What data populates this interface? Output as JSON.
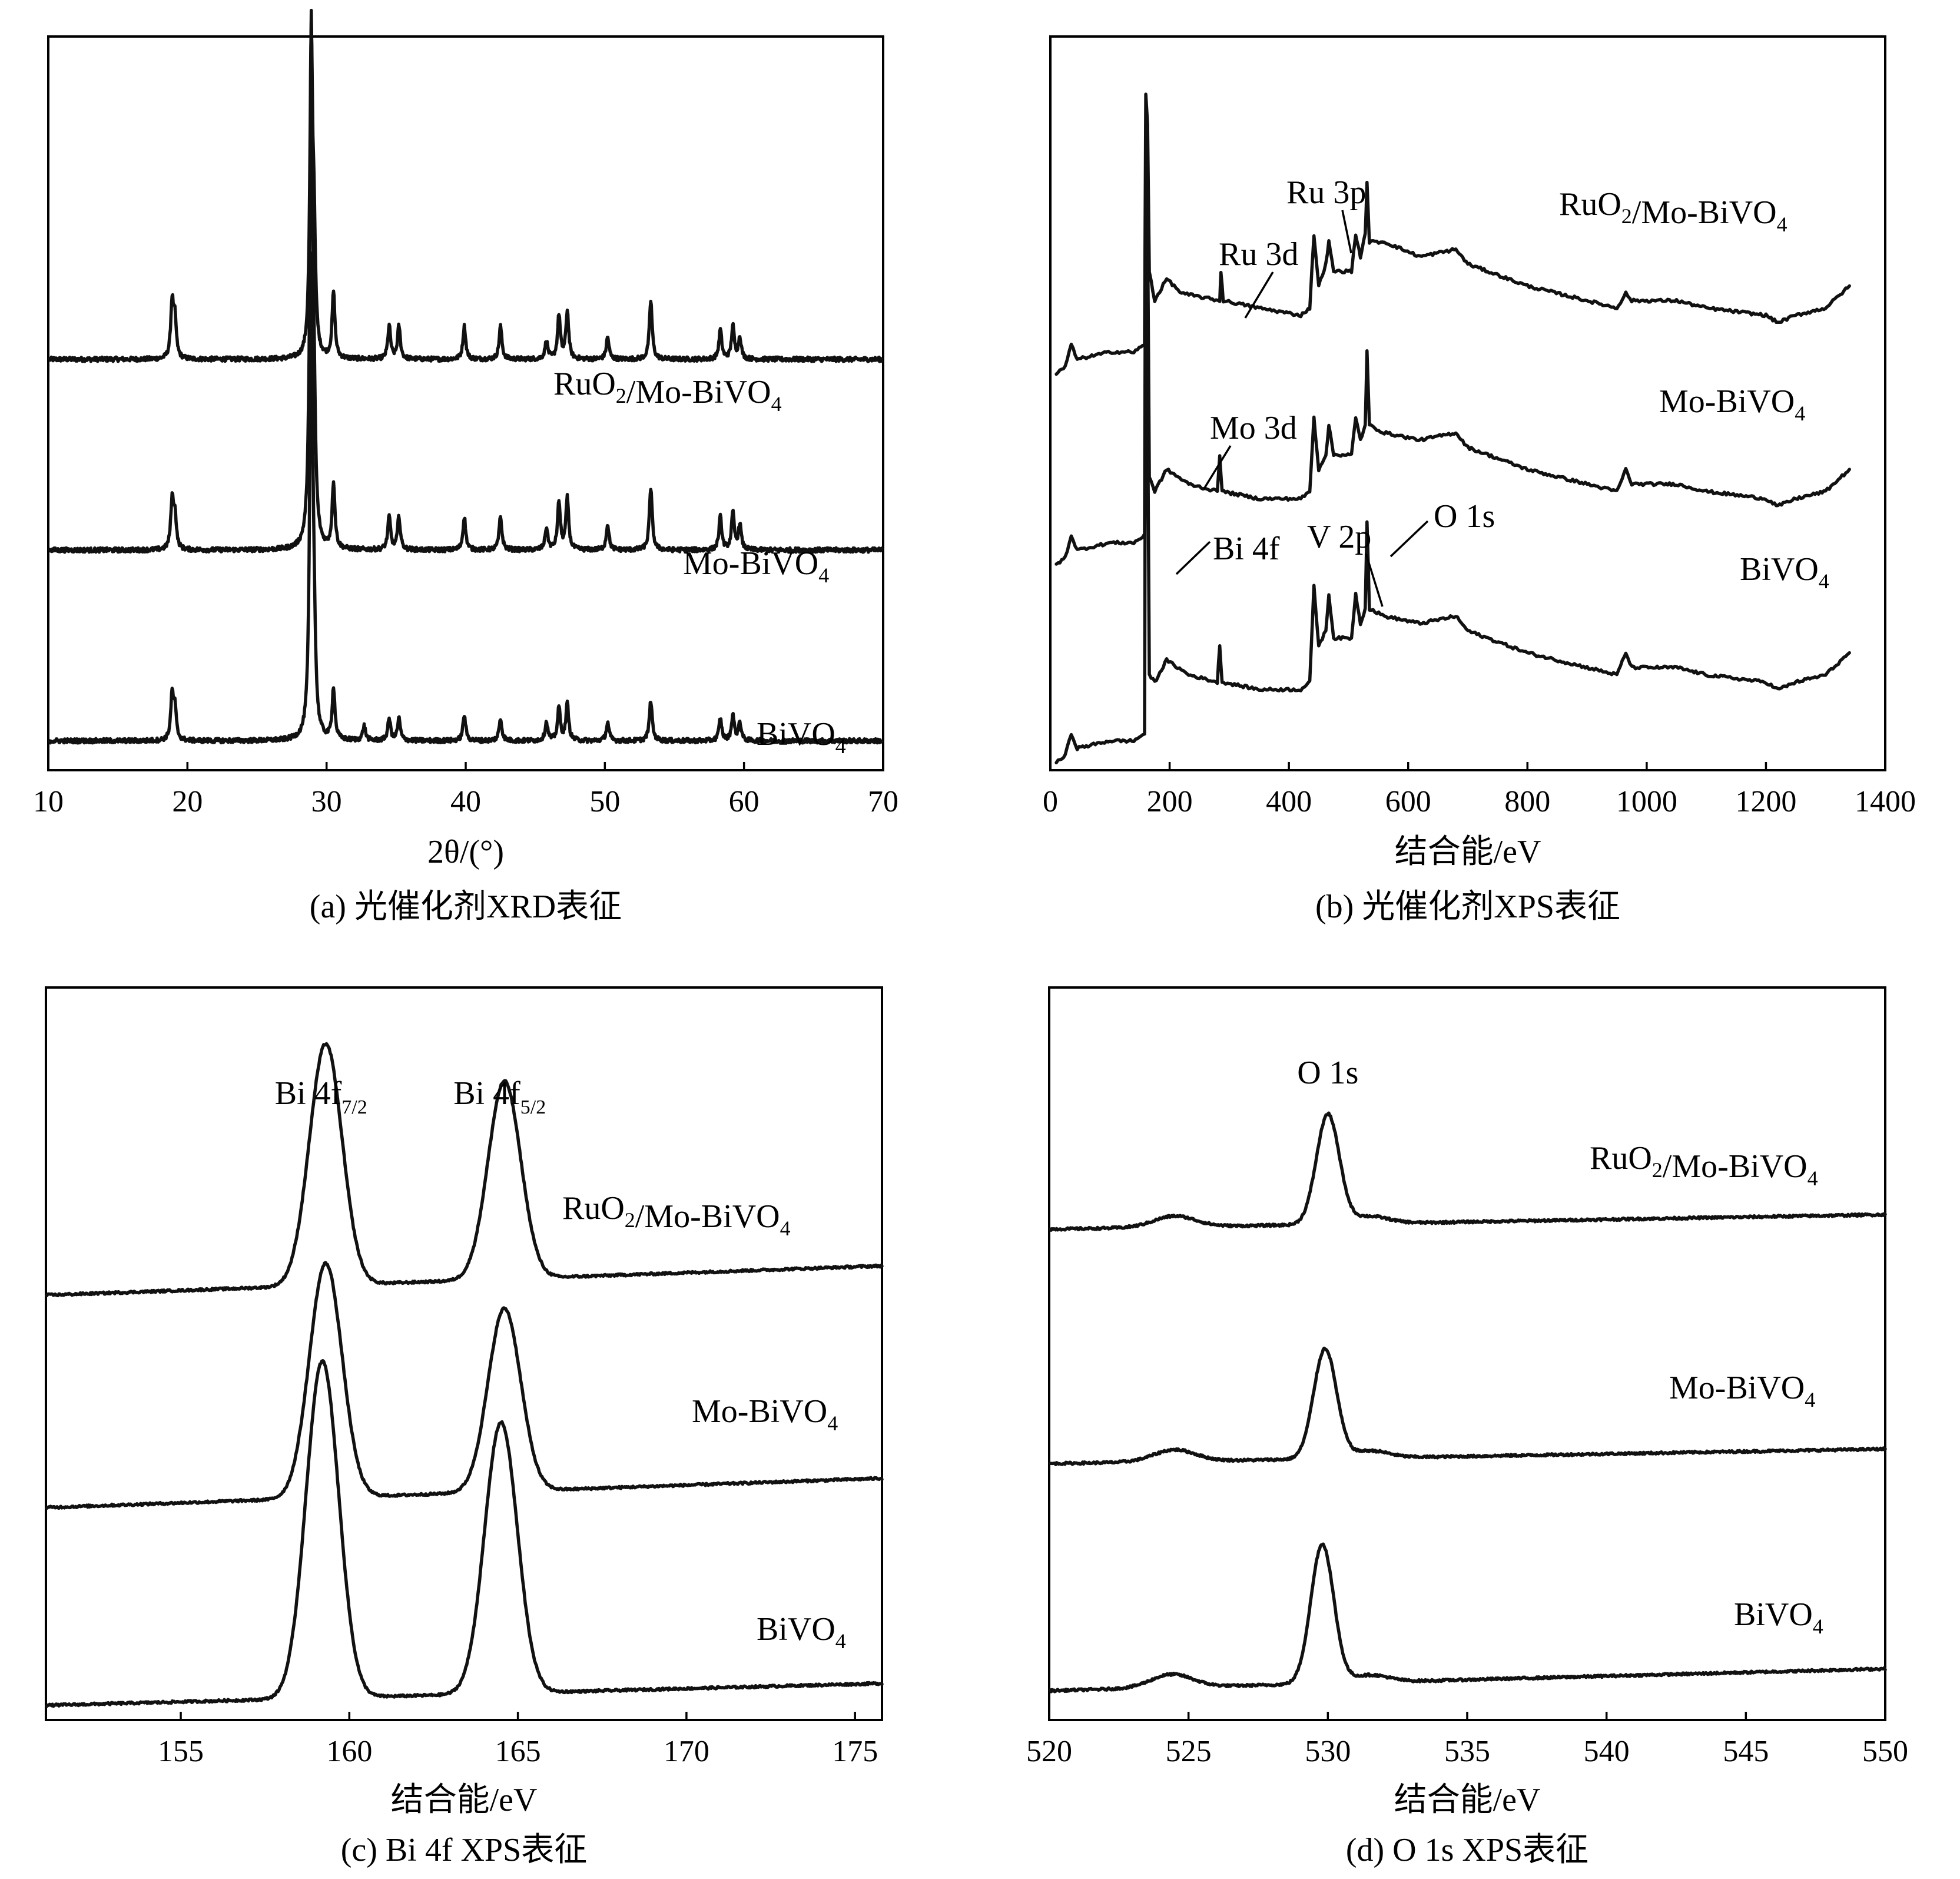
{
  "chart_data": [
    {
      "id": "a",
      "type": "line",
      "caption": "(a) 光催化剂XRD表征",
      "xlabel": "2θ/(°)",
      "ylabel": "",
      "xlim": [
        10,
        70
      ],
      "xticks": [
        10,
        20,
        30,
        40,
        50,
        60,
        70
      ],
      "y_axis_ticks": false,
      "grid": false,
      "baseline_step": 0.26,
      "series": [
        {
          "name": "RuO₂/Mo-BiVO₄",
          "baseline": 0.56,
          "peaks": [
            [
              18.9,
              0.075
            ],
            [
              19.1,
              0.05
            ],
            [
              28.9,
              0.42
            ],
            [
              29.1,
              0.14
            ],
            [
              30.5,
              0.09
            ],
            [
              34.5,
              0.045
            ],
            [
              35.2,
              0.045
            ],
            [
              39.9,
              0.045
            ],
            [
              42.5,
              0.045
            ],
            [
              45.8,
              0.025
            ],
            [
              46.7,
              0.06
            ],
            [
              47.3,
              0.065
            ],
            [
              50.2,
              0.03
            ],
            [
              53.3,
              0.08
            ],
            [
              58.3,
              0.04
            ],
            [
              59.2,
              0.045
            ],
            [
              59.7,
              0.03
            ]
          ]
        },
        {
          "name": "Mo-BiVO₄",
          "baseline": 0.3,
          "peaks": [
            [
              18.9,
              0.065
            ],
            [
              19.1,
              0.045
            ],
            [
              28.9,
              0.7
            ],
            [
              29.1,
              0.13
            ],
            [
              30.5,
              0.09
            ],
            [
              34.5,
              0.045
            ],
            [
              35.2,
              0.045
            ],
            [
              39.9,
              0.045
            ],
            [
              42.5,
              0.045
            ],
            [
              45.8,
              0.03
            ],
            [
              46.7,
              0.065
            ],
            [
              47.3,
              0.07
            ],
            [
              50.2,
              0.035
            ],
            [
              53.3,
              0.085
            ],
            [
              58.3,
              0.045
            ],
            [
              59.2,
              0.05
            ],
            [
              59.7,
              0.035
            ]
          ]
        },
        {
          "name": "BiVO₄",
          "baseline": 0.04,
          "peaks": [
            [
              18.9,
              0.06
            ],
            [
              19.1,
              0.04
            ],
            [
              28.9,
              0.64
            ],
            [
              29.1,
              0.1
            ],
            [
              30.5,
              0.07
            ],
            [
              32.7,
              0.02
            ],
            [
              34.5,
              0.03
            ],
            [
              35.2,
              0.03
            ],
            [
              39.9,
              0.035
            ],
            [
              42.5,
              0.03
            ],
            [
              45.8,
              0.025
            ],
            [
              46.7,
              0.045
            ],
            [
              47.3,
              0.05
            ],
            [
              50.2,
              0.025
            ],
            [
              53.3,
              0.055
            ],
            [
              58.3,
              0.03
            ],
            [
              59.2,
              0.035
            ],
            [
              59.7,
              0.025
            ]
          ]
        }
      ]
    },
    {
      "id": "b",
      "type": "line",
      "caption": "(b) 光催化剂XPS表征",
      "xlabel": "结合能/eV",
      "ylabel": "",
      "xlim": [
        0,
        1400
      ],
      "xticks": [
        0,
        200,
        400,
        600,
        800,
        1000,
        1200,
        1400
      ],
      "y_axis_ticks": false,
      "grid": false,
      "series": [
        {
          "name": "RuO₂/Mo-BiVO₄",
          "points": [
            [
              10,
              0.54
            ],
            [
              25,
              0.55
            ],
            [
              35,
              0.58
            ],
            [
              45,
              0.56
            ],
            [
              100,
              0.57
            ],
            [
              140,
              0.57
            ],
            [
              158,
              0.58
            ],
            [
              160,
              0.92
            ],
            [
              163,
              0.88
            ],
            [
              166,
              0.68
            ],
            [
              175,
              0.64
            ],
            [
              195,
              0.67
            ],
            [
              220,
              0.65
            ],
            [
              284,
              0.64
            ],
            [
              286,
              0.68
            ],
            [
              290,
              0.64
            ],
            [
              350,
              0.63
            ],
            [
              420,
              0.62
            ],
            [
              435,
              0.63
            ],
            [
              442,
              0.73
            ],
            [
              450,
              0.66
            ],
            [
              462,
              0.69
            ],
            [
              467,
              0.72
            ],
            [
              475,
              0.68
            ],
            [
              505,
              0.68
            ],
            [
              512,
              0.73
            ],
            [
              520,
              0.7
            ],
            [
              528,
              0.73
            ],
            [
              531,
              0.8
            ],
            [
              535,
              0.72
            ],
            [
              560,
              0.72
            ],
            [
              620,
              0.7
            ],
            [
              680,
              0.71
            ],
            [
              700,
              0.69
            ],
            [
              800,
              0.66
            ],
            [
              900,
              0.64
            ],
            [
              950,
              0.63
            ],
            [
              965,
              0.65
            ],
            [
              975,
              0.64
            ],
            [
              1000,
              0.64
            ],
            [
              1050,
              0.64
            ],
            [
              1100,
              0.63
            ],
            [
              1200,
              0.62
            ],
            [
              1220,
              0.61
            ],
            [
              1250,
              0.62
            ],
            [
              1300,
              0.63
            ],
            [
              1340,
              0.66
            ]
          ]
        },
        {
          "name": "Mo-BiVO₄",
          "points": [
            [
              10,
              0.28
            ],
            [
              25,
              0.29
            ],
            [
              35,
              0.32
            ],
            [
              45,
              0.3
            ],
            [
              100,
              0.31
            ],
            [
              140,
              0.31
            ],
            [
              158,
              0.32
            ],
            [
              160,
              0.86
            ],
            [
              163,
              0.76
            ],
            [
              166,
              0.4
            ],
            [
              175,
              0.38
            ],
            [
              195,
              0.41
            ],
            [
              232,
              0.39
            ],
            [
              280,
              0.38
            ],
            [
              284,
              0.43
            ],
            [
              288,
              0.38
            ],
            [
              350,
              0.37
            ],
            [
              420,
              0.37
            ],
            [
              435,
              0.38
            ],
            [
              442,
              0.48
            ],
            [
              450,
              0.41
            ],
            [
              462,
              0.43
            ],
            [
              467,
              0.47
            ],
            [
              475,
              0.43
            ],
            [
              505,
              0.43
            ],
            [
              512,
              0.48
            ],
            [
              520,
              0.45
            ],
            [
              528,
              0.47
            ],
            [
              531,
              0.57
            ],
            [
              535,
              0.47
            ],
            [
              560,
              0.46
            ],
            [
              620,
              0.45
            ],
            [
              680,
              0.46
            ],
            [
              700,
              0.44
            ],
            [
              800,
              0.41
            ],
            [
              900,
              0.39
            ],
            [
              950,
              0.38
            ],
            [
              965,
              0.41
            ],
            [
              975,
              0.39
            ],
            [
              1000,
              0.39
            ],
            [
              1050,
              0.39
            ],
            [
              1100,
              0.38
            ],
            [
              1200,
              0.37
            ],
            [
              1220,
              0.36
            ],
            [
              1250,
              0.37
            ],
            [
              1300,
              0.38
            ],
            [
              1340,
              0.41
            ]
          ]
        },
        {
          "name": "BiVO₄",
          "points": [
            [
              10,
              0.01
            ],
            [
              25,
              0.02
            ],
            [
              35,
              0.05
            ],
            [
              45,
              0.03
            ],
            [
              100,
              0.04
            ],
            [
              140,
              0.04
            ],
            [
              158,
              0.05
            ],
            [
              160,
              0.7
            ],
            [
              163,
              0.52
            ],
            [
              166,
              0.13
            ],
            [
              175,
              0.12
            ],
            [
              195,
              0.15
            ],
            [
              232,
              0.13
            ],
            [
              280,
              0.12
            ],
            [
              284,
              0.17
            ],
            [
              288,
              0.12
            ],
            [
              350,
              0.11
            ],
            [
              420,
              0.11
            ],
            [
              435,
              0.12
            ],
            [
              442,
              0.25
            ],
            [
              450,
              0.17
            ],
            [
              462,
              0.19
            ],
            [
              467,
              0.24
            ],
            [
              475,
              0.18
            ],
            [
              505,
              0.18
            ],
            [
              512,
              0.24
            ],
            [
              520,
              0.2
            ],
            [
              528,
              0.22
            ],
            [
              531,
              0.34
            ],
            [
              535,
              0.22
            ],
            [
              560,
              0.21
            ],
            [
              620,
              0.2
            ],
            [
              680,
              0.21
            ],
            [
              700,
              0.19
            ],
            [
              800,
              0.16
            ],
            [
              900,
              0.14
            ],
            [
              950,
              0.13
            ],
            [
              965,
              0.16
            ],
            [
              975,
              0.14
            ],
            [
              1000,
              0.14
            ],
            [
              1050,
              0.14
            ],
            [
              1100,
              0.13
            ],
            [
              1200,
              0.12
            ],
            [
              1220,
              0.11
            ],
            [
              1250,
              0.12
            ],
            [
              1300,
              0.13
            ],
            [
              1340,
              0.16
            ]
          ]
        }
      ],
      "annotations": [
        {
          "text": "Ru 3p",
          "x": 470
        },
        {
          "text": "Ru 3d",
          "x": 282
        },
        {
          "text": "Mo 3d",
          "x": 232
        },
        {
          "text": "Bi 4f",
          "x": 160
        },
        {
          "text": "V 2p",
          "x": 517
        },
        {
          "text": "O 1s",
          "x": 531
        }
      ]
    },
    {
      "id": "c",
      "type": "line",
      "caption": "(c) Bi 4f XPS表征",
      "xlabel": "结合能/eV",
      "ylabel": "",
      "xlim": [
        151,
        175.8
      ],
      "xticks": [
        155,
        160,
        165,
        170,
        175
      ],
      "y_axis_ticks": false,
      "grid": false,
      "peak_labels": [
        {
          "main": "Bi 4f",
          "sub": "7/2",
          "x": 159.3
        },
        {
          "main": "Bi 4f",
          "sub": "5/2",
          "x": 164.6
        }
      ],
      "series": [
        {
          "name": "RuO₂/Mo-BiVO₄",
          "baseline_start": 0.58,
          "baseline_end": 0.62,
          "peaks": [
            [
              159.3,
              0.33,
              0.65
            ],
            [
              164.6,
              0.27,
              0.65
            ]
          ]
        },
        {
          "name": "Mo-BiVO₄",
          "baseline_start": 0.29,
          "baseline_end": 0.33,
          "peaks": [
            [
              159.3,
              0.32,
              0.65
            ],
            [
              164.6,
              0.25,
              0.65
            ]
          ]
        },
        {
          "name": "BiVO₄",
          "baseline_start": 0.02,
          "baseline_end": 0.05,
          "peaks": [
            [
              159.2,
              0.46,
              0.65
            ],
            [
              164.5,
              0.37,
              0.65
            ]
          ]
        }
      ]
    },
    {
      "id": "d",
      "type": "line",
      "caption": "(d) O 1s XPS表征",
      "xlabel": "结合能/eV",
      "ylabel": "",
      "xlim": [
        520,
        550
      ],
      "xticks": [
        520,
        525,
        530,
        535,
        540,
        545,
        550
      ],
      "y_axis_ticks": false,
      "grid": false,
      "peak_labels": [
        {
          "main": "O 1s",
          "sub": "",
          "x": 530
        }
      ],
      "series": [
        {
          "name": "RuO₂/Mo-BiVO₄",
          "baseline_start": 0.67,
          "baseline_end": 0.69,
          "peaks": [
            [
              530,
              0.15,
              0.55
            ],
            [
              524.5,
              0.015,
              1.0
            ],
            [
              531.5,
              0.01,
              0.9
            ]
          ]
        },
        {
          "name": "Mo-BiVO₄",
          "baseline_start": 0.35,
          "baseline_end": 0.37,
          "peaks": [
            [
              529.9,
              0.15,
              0.55
            ],
            [
              524.5,
              0.016,
              1.0
            ],
            [
              531.5,
              0.01,
              0.9
            ]
          ]
        },
        {
          "name": "BiVO₄",
          "baseline_start": 0.04,
          "baseline_end": 0.07,
          "peaks": [
            [
              529.8,
              0.19,
              0.55
            ],
            [
              524.4,
              0.018,
              1.0
            ],
            [
              531.5,
              0.01,
              0.9
            ]
          ]
        }
      ]
    }
  ]
}
